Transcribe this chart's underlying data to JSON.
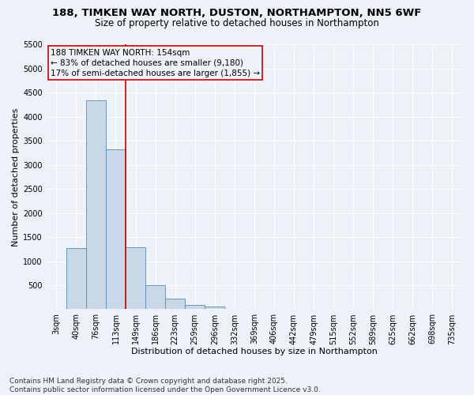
{
  "title1": "188, TIMKEN WAY NORTH, DUSTON, NORTHAMPTON, NN5 6WF",
  "title2": "Size of property relative to detached houses in Northampton",
  "xlabel": "Distribution of detached houses by size in Northampton",
  "ylabel": "Number of detached properties",
  "categories": [
    "3sqm",
    "40sqm",
    "76sqm",
    "113sqm",
    "149sqm",
    "186sqm",
    "223sqm",
    "259sqm",
    "296sqm",
    "332sqm",
    "369sqm",
    "406sqm",
    "442sqm",
    "479sqm",
    "515sqm",
    "552sqm",
    "589sqm",
    "625sqm",
    "662sqm",
    "698sqm",
    "735sqm"
  ],
  "values": [
    0,
    1270,
    4350,
    3320,
    1290,
    500,
    215,
    85,
    55,
    0,
    0,
    0,
    0,
    0,
    0,
    0,
    0,
    0,
    0,
    0,
    0
  ],
  "bar_color": "#c8d8e8",
  "bar_edge_color": "#5a8ab0",
  "annotation_line1": "188 TIMKEN WAY NORTH: 154sqm",
  "annotation_line2": "← 83% of detached houses are smaller (9,180)",
  "annotation_line3": "17% of semi-detached houses are larger (1,855) →",
  "annotation_box_color": "#cc0000",
  "vline_color": "#cc0000",
  "vline_x_index": 3,
  "ylim": [
    0,
    5500
  ],
  "yticks": [
    0,
    500,
    1000,
    1500,
    2000,
    2500,
    3000,
    3500,
    4000,
    4500,
    5000,
    5500
  ],
  "background_color": "#edf2f8",
  "grid_color": "#ffffff",
  "footer1": "Contains HM Land Registry data © Crown copyright and database right 2025.",
  "footer2": "Contains public sector information licensed under the Open Government Licence v3.0.",
  "title_fontsize": 9.5,
  "subtitle_fontsize": 8.5,
  "axis_label_fontsize": 8,
  "tick_fontsize": 7,
  "annotation_fontsize": 7.5,
  "footer_fontsize": 6.5
}
